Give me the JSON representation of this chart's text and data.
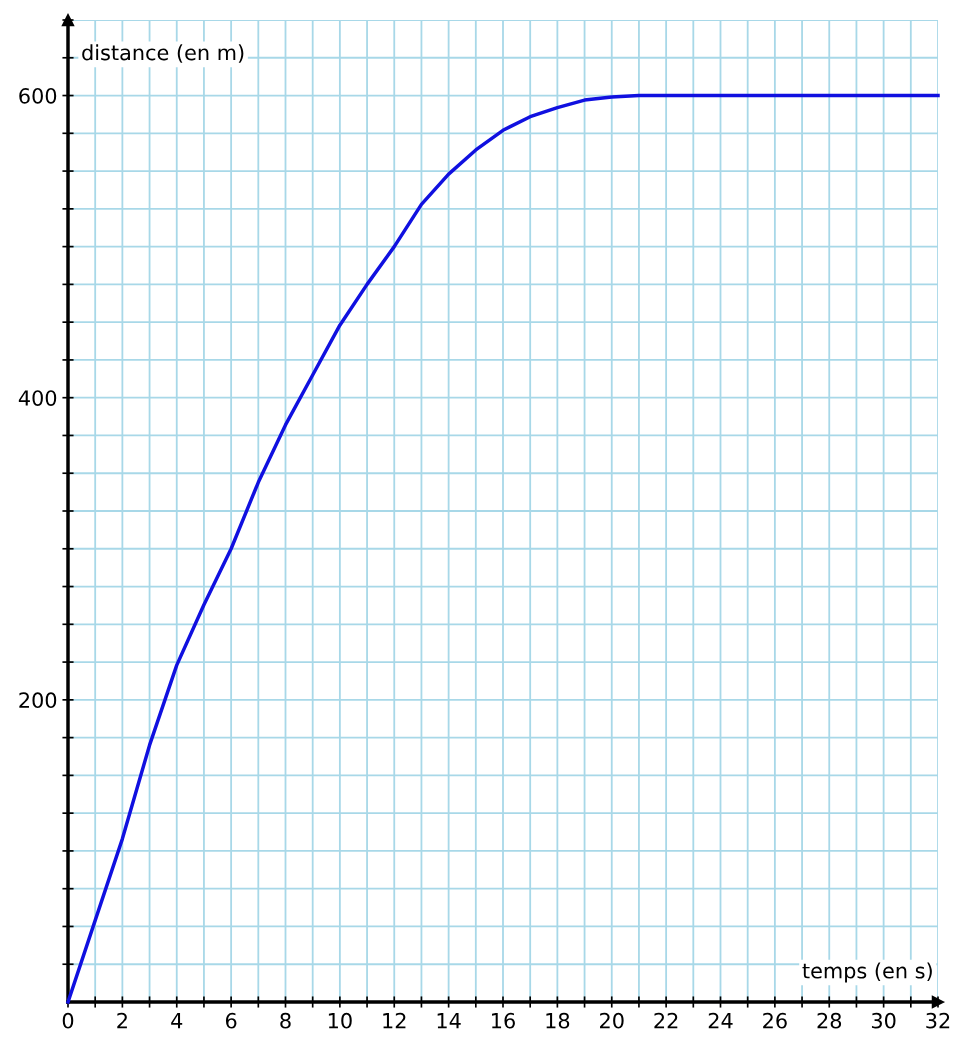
{
  "chart_data": {
    "type": "line",
    "xlabel": "temps (en s)",
    "ylabel": "distance (en m)",
    "x": [
      0,
      1,
      2,
      3,
      4,
      5,
      6,
      7,
      8,
      9,
      10,
      11,
      12,
      13,
      14,
      15,
      16,
      17,
      18,
      19,
      20,
      21,
      22,
      24,
      26,
      28,
      30,
      32
    ],
    "series": [
      {
        "color": "#1010e0",
        "values": [
          0,
          54,
          108,
          170,
          223,
          263,
          300,
          344,
          382,
          415,
          448,
          475,
          500,
          528,
          548,
          564,
          577,
          586,
          592,
          597,
          599,
          600,
          600,
          600,
          600,
          600,
          600,
          600
        ]
      }
    ],
    "xlim": [
      0,
      32
    ],
    "ylim": [
      0,
      650
    ],
    "xticks": [
      0,
      {
        "value": 1,
        "label": null
      },
      2,
      {
        "value": 3,
        "label": null
      },
      4,
      {
        "value": 5,
        "label": null
      },
      6,
      {
        "value": 7,
        "label": null
      },
      8,
      {
        "value": 9,
        "label": null
      },
      10,
      {
        "value": 11,
        "label": null
      },
      12,
      {
        "value": 13,
        "label": null
      },
      14,
      {
        "value": 15,
        "label": null
      },
      16,
      {
        "value": 17,
        "label": null
      },
      18,
      {
        "value": 19,
        "label": null
      },
      20,
      {
        "value": 21,
        "label": null
      },
      22,
      {
        "value": 23,
        "label": null
      },
      24,
      {
        "value": 25,
        "label": null
      },
      26,
      {
        "value": 27,
        "label": null
      },
      28,
      {
        "value": 29,
        "label": null
      },
      30,
      {
        "value": 31,
        "label": null
      },
      32
    ],
    "yticks": [
      {
        "value": 25,
        "label": null
      },
      {
        "value": 50,
        "label": null
      },
      {
        "value": 75,
        "label": null
      },
      {
        "value": 100,
        "label": null
      },
      {
        "value": 125,
        "label": null
      },
      {
        "value": 150,
        "label": null
      },
      {
        "value": 175,
        "label": null
      },
      200,
      {
        "value": 225,
        "label": null
      },
      {
        "value": 250,
        "label": null
      },
      {
        "value": 275,
        "label": null
      },
      {
        "value": 300,
        "label": null
      },
      {
        "value": 325,
        "label": null
      },
      {
        "value": 350,
        "label": null
      },
      {
        "value": 375,
        "label": null
      },
      400,
      {
        "value": 425,
        "label": null
      },
      {
        "value": 450,
        "label": null
      },
      {
        "value": 475,
        "label": null
      },
      {
        "value": 500,
        "label": null
      },
      {
        "value": 525,
        "label": null
      },
      {
        "value": 550,
        "label": null
      },
      {
        "value": 575,
        "label": null
      },
      600,
      {
        "value": 625,
        "label": null
      },
      {
        "value": 650,
        "label": null
      }
    ],
    "grid": true,
    "marker": "none",
    "line_style": "solid"
  }
}
